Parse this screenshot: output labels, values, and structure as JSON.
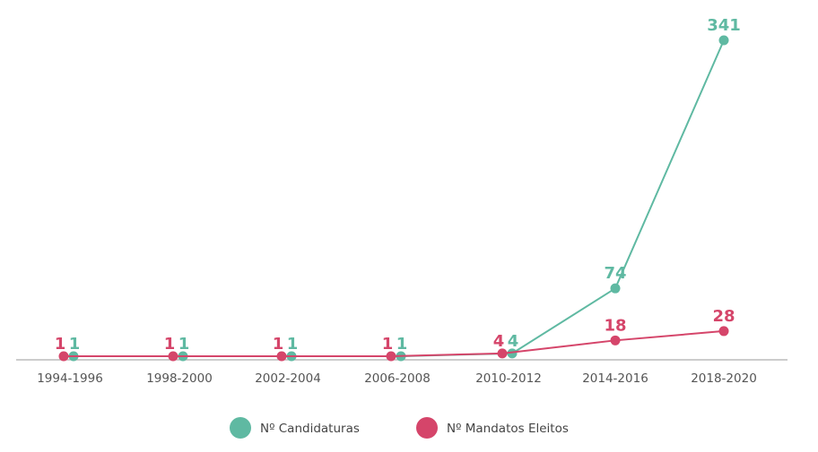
{
  "chart_data": {
    "type": "line",
    "title": "",
    "xlabel": "",
    "ylabel": "",
    "categories": [
      "1994-1996",
      "1998-2000",
      "2002-2004",
      "2006-2008",
      "2010-2012",
      "2014-2016",
      "2018-2020"
    ],
    "series": [
      {
        "name": "Nº Candidaturas",
        "color": "#5fb9a2",
        "values": [
          1,
          1,
          1,
          1,
          4,
          74,
          341
        ]
      },
      {
        "name": "Nº Mandatos Eleitos",
        "color": "#d5456a",
        "values": [
          1,
          1,
          1,
          1,
          4,
          18,
          28
        ]
      }
    ],
    "ylim": [
      0,
      341
    ],
    "grid": false,
    "legend_position": "bottom-center"
  }
}
